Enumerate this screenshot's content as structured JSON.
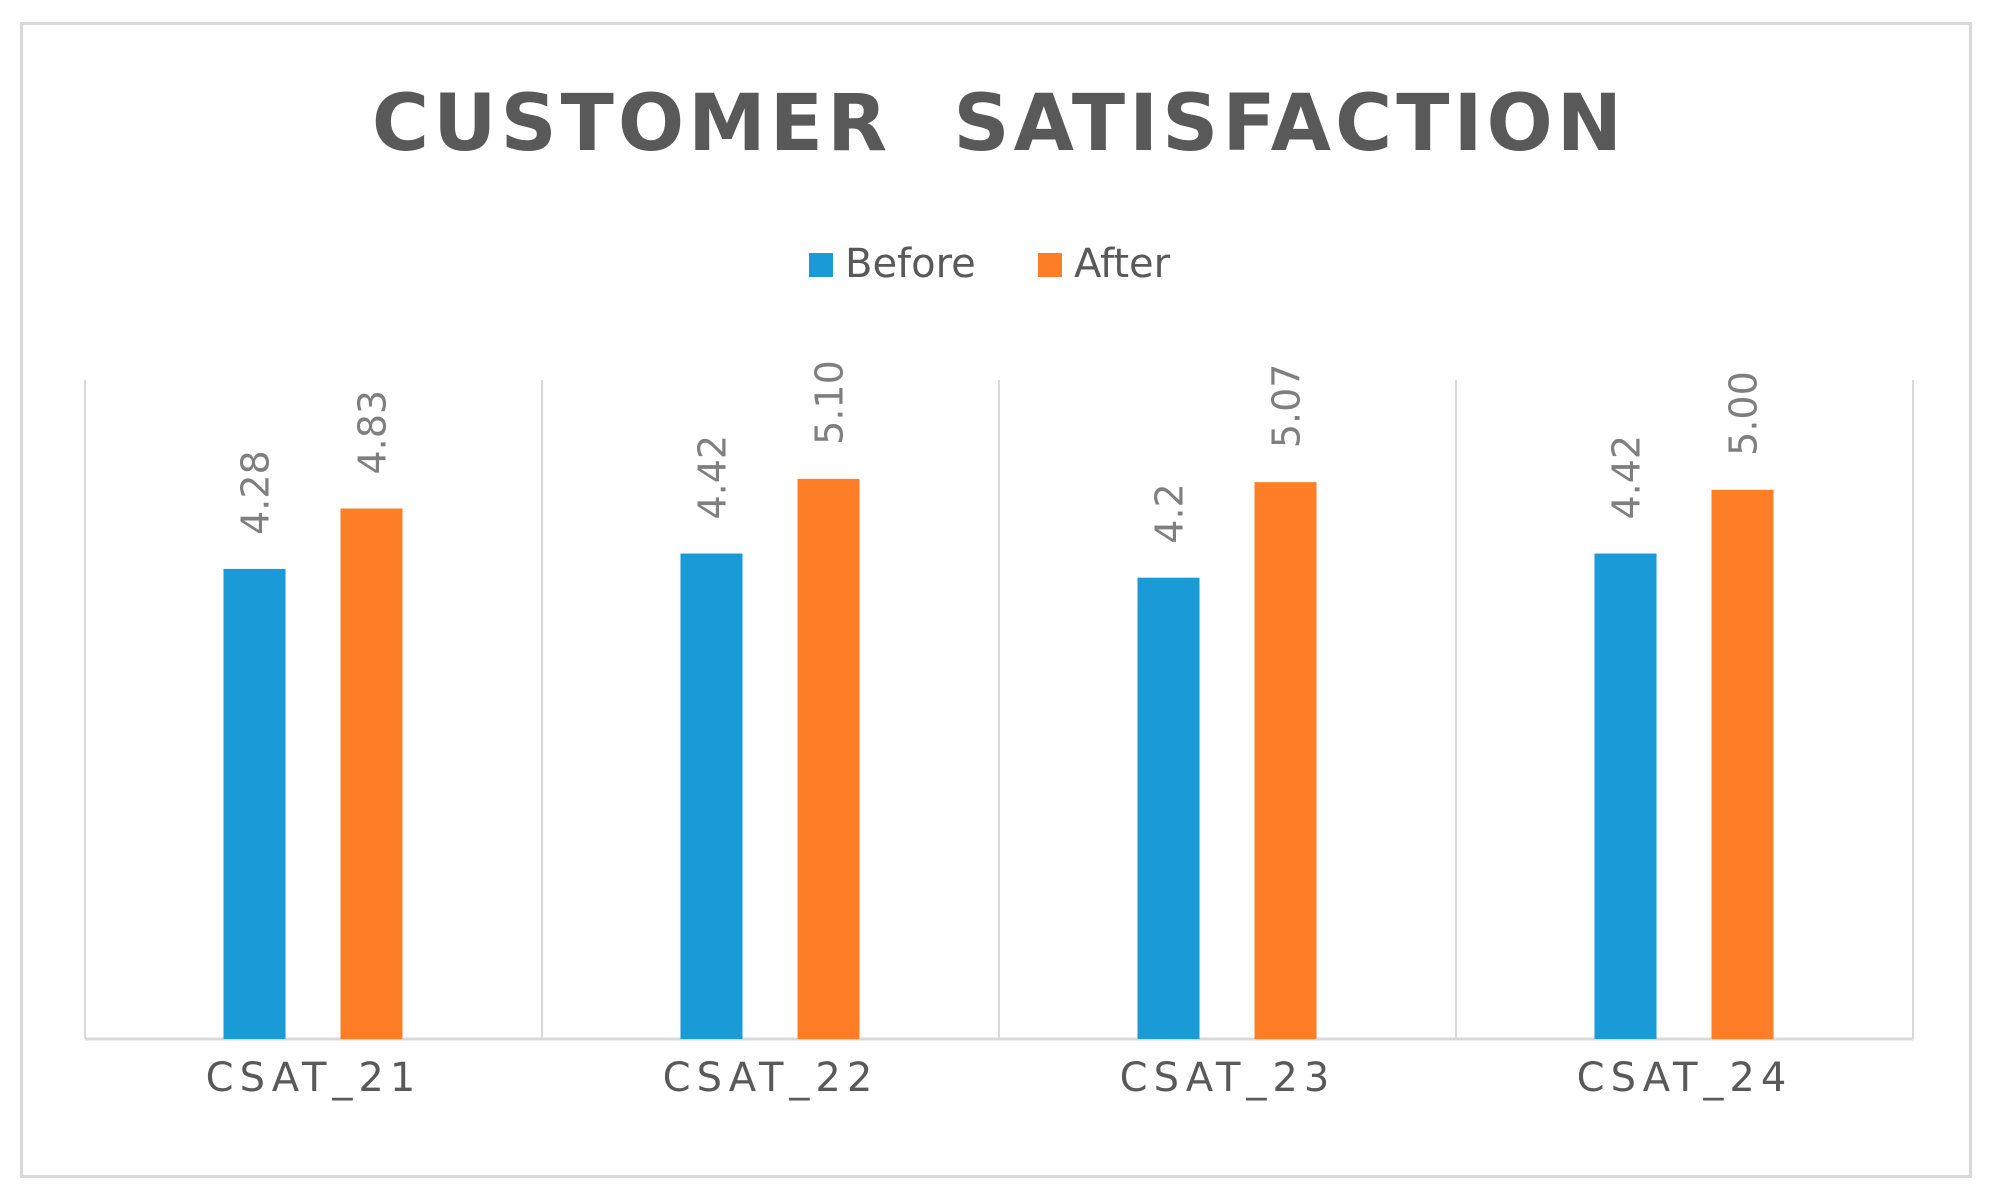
{
  "chart_data": {
    "type": "bar",
    "title": "CUSTOMER  SATISFACTION",
    "categories": [
      "CSAT_21",
      "CSAT_22",
      "CSAT_23",
      "CSAT_24"
    ],
    "series": [
      {
        "name": "Before",
        "color": "#1a9ad6",
        "values": [
          4.28,
          4.42,
          4.2,
          4.42
        ],
        "labels": [
          "4.28",
          "4.42",
          "4.2",
          "4.42"
        ]
      },
      {
        "name": "After",
        "color": "#fd7e27",
        "values": [
          4.83,
          5.1,
          5.07,
          5.0
        ],
        "labels": [
          "4.83",
          "5.10",
          "5.07",
          "5.00"
        ]
      }
    ],
    "xlabel": "",
    "ylabel": "",
    "ylim": [
      0,
      6
    ],
    "grid": true,
    "legend_position": "top",
    "colors": {
      "gridline": "#d9d9d9",
      "axis": "#d9d9d9",
      "text": "#595959",
      "data_label": "#7f7f7f"
    }
  }
}
